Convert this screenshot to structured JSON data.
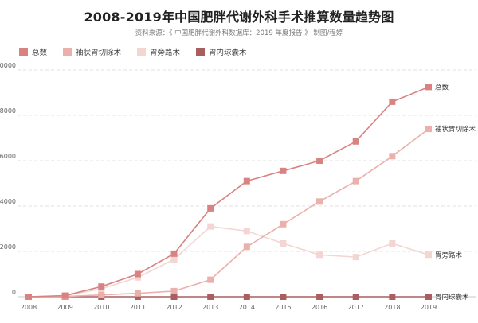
{
  "title": "2008-2019年中国肥胖代谢外科手术推算数量趋势图",
  "subtitle": "资料来源：《 中国肥胖代谢外科数据库：2019 年度报告 》    制图/程婷",
  "chart_data": {
    "type": "line",
    "x": [
      "2008",
      "2009",
      "2010",
      "2011",
      "2012",
      "2013",
      "2014",
      "2015",
      "2016",
      "2017",
      "2018",
      "2019"
    ],
    "ylim": [
      0,
      10000
    ],
    "yticks": [
      "0",
      "2000",
      "4000",
      "6000",
      "8000",
      "10000"
    ],
    "grid": true,
    "legend_position": "top-left",
    "series": [
      {
        "name": "总数",
        "color": "#d98282",
        "values": [
          0,
          50,
          450,
          1000,
          1900,
          3900,
          5100,
          5550,
          6000,
          6850,
          8600,
          9250
        ]
      },
      {
        "name": "袖状胃切除术",
        "color": "#ebb0ab",
        "values": [
          0,
          10,
          80,
          150,
          250,
          750,
          2200,
          3200,
          4200,
          5100,
          6200,
          7400
        ]
      },
      {
        "name": "胃旁路术",
        "color": "#f3d5d2",
        "values": [
          0,
          40,
          350,
          850,
          1650,
          3100,
          2900,
          2350,
          1850,
          1750,
          2350,
          1850
        ]
      },
      {
        "name": "胃内球囊术",
        "color": "#a85f5f",
        "values": [
          0,
          0,
          0,
          0,
          0,
          0,
          0,
          0,
          0,
          0,
          0,
          0
        ]
      }
    ]
  }
}
